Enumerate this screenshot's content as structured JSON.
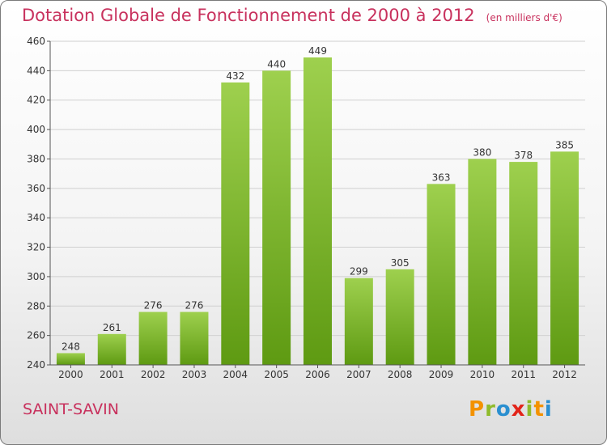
{
  "title": "Dotation Globale de Fonctionnement de 2000 à 2012",
  "subtitle": "(en milliers d'€)",
  "commune": "SAINT-SAVIN",
  "logo": "Proxiti",
  "colors": {
    "title": "#c8315d",
    "bar_top": "#9ed04e",
    "bar_bottom": "#5e9a12"
  },
  "chart_data": {
    "type": "bar",
    "title": "Dotation Globale de Fonctionnement de 2000 à 2012",
    "subtitle": "(en milliers d'€)",
    "categories": [
      "2000",
      "2001",
      "2002",
      "2003",
      "2004",
      "2005",
      "2006",
      "2007",
      "2008",
      "2009",
      "2010",
      "2011",
      "2012"
    ],
    "values": [
      248,
      261,
      276,
      276,
      432,
      440,
      449,
      299,
      305,
      363,
      380,
      378,
      385
    ],
    "ylim": [
      240,
      460
    ],
    "yticks": [
      240,
      260,
      280,
      300,
      320,
      340,
      360,
      380,
      400,
      420,
      440,
      460
    ],
    "grid": true,
    "data_labels": true
  }
}
